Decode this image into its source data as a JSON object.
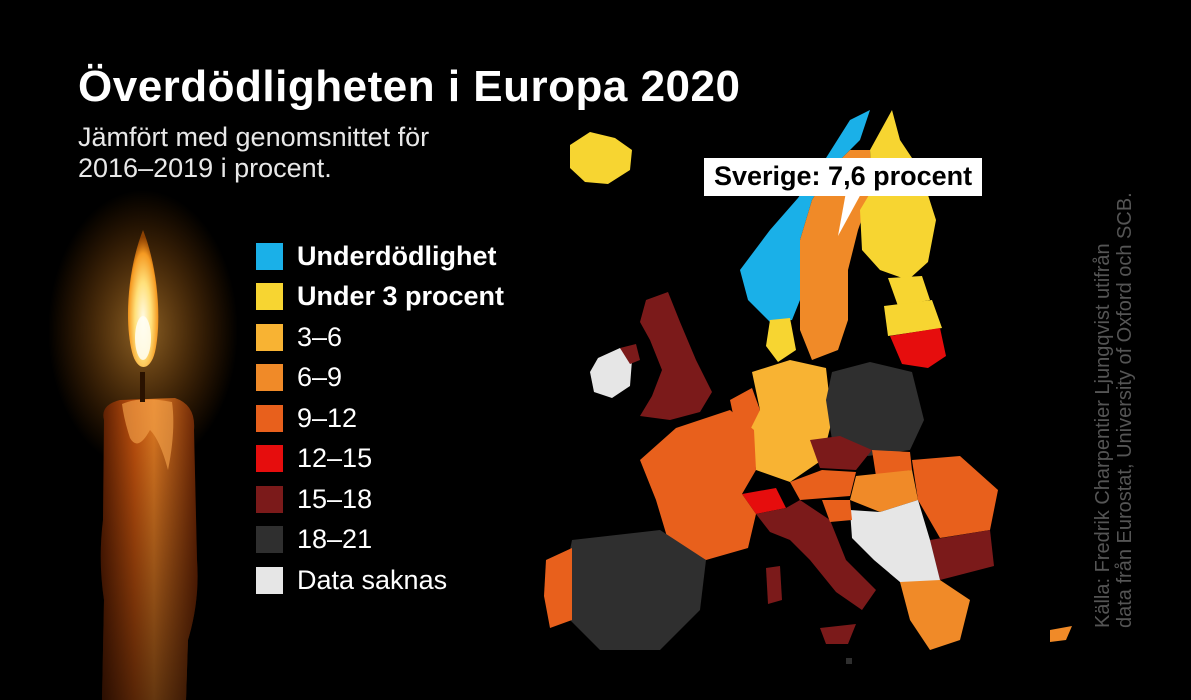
{
  "header": {
    "title": "Överdödligheten i Europa 2020",
    "subtitle_line1": "Jämfört med genomsnittet för",
    "subtitle_line2": "2016–2019 i procent."
  },
  "legend": {
    "items": [
      {
        "label": "Underdödlighet",
        "color": "#1ab0e8",
        "bold": true
      },
      {
        "label": "Under 3 procent",
        "color": "#f7d531",
        "bold": true
      },
      {
        "label": "3–6",
        "color": "#f8b333",
        "bold": false
      },
      {
        "label": "6–9",
        "color": "#f08a28",
        "bold": false
      },
      {
        "label": "9–12",
        "color": "#e8601c",
        "bold": false
      },
      {
        "label": "12–15",
        "color": "#e60d0d",
        "bold": false
      },
      {
        "label": "15–18",
        "color": "#7b1a1a",
        "bold": false
      },
      {
        "label": "18–21",
        "color": "#2f2f2f",
        "bold": false
      },
      {
        "label": "Data saknas",
        "color": "#e6e6e6",
        "bold": false
      }
    ]
  },
  "callout": {
    "label": "Sverige: 7,6 procent"
  },
  "source": {
    "line1": "Källa: Fredrik Charpentier Ljungqvist utifrån",
    "line2": "data från Eurostat, University of Oxford och SCB."
  },
  "colors": {
    "background": "#000000",
    "text": "#ffffff",
    "source_text": "#555555"
  }
}
